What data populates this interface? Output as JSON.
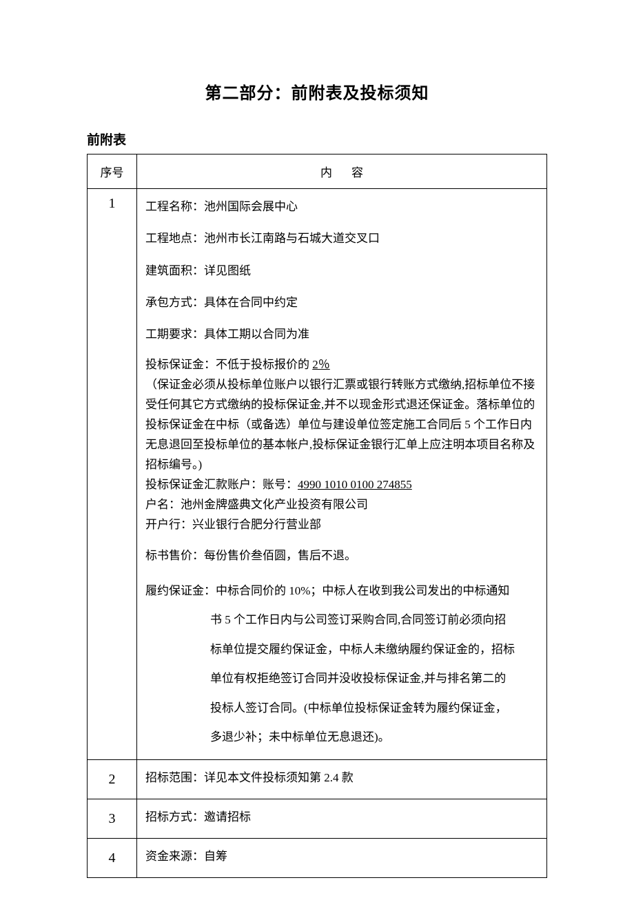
{
  "title": "第二部分：前附表及投标须知",
  "subtitle": "前附表",
  "table": {
    "header": {
      "seq": "序号",
      "content_left": "内",
      "content_right": "容"
    },
    "rows": [
      {
        "seq": "1",
        "items": {
          "project_name": "工程名称：池州国际会展中心",
          "project_location": "工程地点：池州市长江南路与石城大道交叉口",
          "building_area": "建筑面积：详见图纸",
          "contract_mode": "承包方式：具体在合同中约定",
          "schedule": "工期要求：具体工期以合同为准",
          "deposit_line1": "投标保证金：不低于投标报价的 ",
          "deposit_pct": "2％",
          "deposit_note1": "（保证金必须从投标单位账户以银行汇票或银行转账方式缴纳,招标单位不接受任何其它方式缴纳的投标保证金,并不以现金形式退还保证金。落标单位的投标保证金在中标（或备选）单位与建设单位签定施工合同后 5 个工作日内无息退回至投标单位的基本帐户,投标保证金银行汇单上应注明本项目名称及招标编号。)",
          "deposit_acct_prefix": "投标保证金汇款账户：账号：",
          "deposit_acct_num": "4990 1010 0100 274855",
          "deposit_acct_name": "户名：池州金牌盛典文化产业投资有限公司",
          "deposit_bank": "开户行：兴业银行合肥分行营业部",
          "doc_price": "标书售价：每份售价叁佰圆，售后不退。",
          "perf_first": "履约保证金：中标合同价的 10%；中标人在收到我公司发出的中标通知",
          "perf_rest_l1": "书 5 个工作日内与公司签订采购合同,合同签订前必须向招",
          "perf_rest_l2": "标单位提交履约保证金，中标人未缴纳履约保证金的，招标",
          "perf_rest_l3": "单位有权拒绝签订合同并没收投标保证金,并与排名第二的",
          "perf_rest_l4": "投标人签订合同。(中标单位投标保证金转为履约保证金，",
          "perf_rest_l5": "多退少补；未中标单位无息退还)。"
        }
      },
      {
        "seq": "2",
        "text": "招标范围：详见本文件投标须知第 2.4 款"
      },
      {
        "seq": "3",
        "text": "招标方式：邀请招标"
      },
      {
        "seq": "4",
        "text": "资金来源：自筹"
      }
    ]
  }
}
